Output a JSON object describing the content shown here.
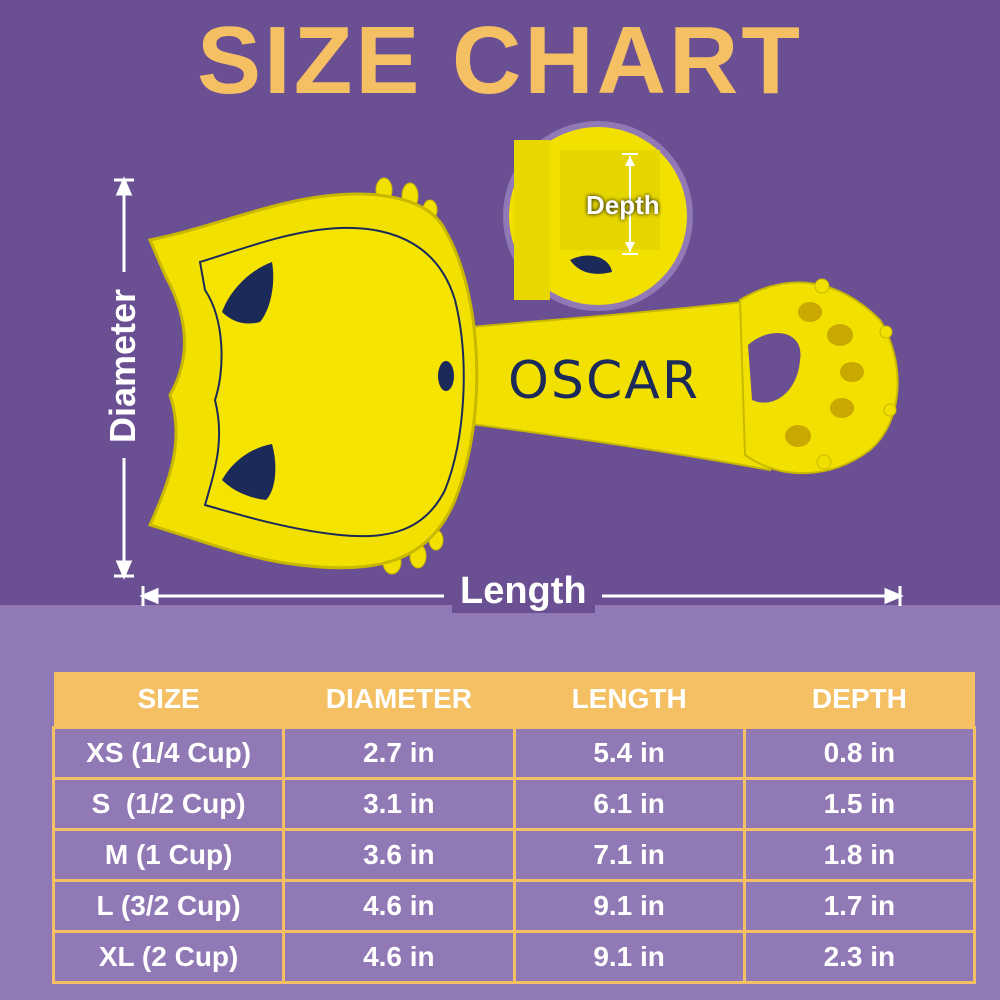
{
  "title": "SIZE CHART",
  "engraving": "OSCAR",
  "dimension_labels": {
    "diameter": "Diameter",
    "length": "Length",
    "depth": "Depth"
  },
  "colors": {
    "header_bg": "#6b4f93",
    "table_bg": "#9079b4",
    "accent": "#f5c063",
    "scoop_yellow": "#f2e100",
    "ears_navy": "#1c2a5a"
  },
  "table": {
    "headers": [
      "SIZE",
      "DIAMETER",
      "LENGTH",
      "DEPTH"
    ],
    "rows": [
      [
        "XS (1/4 Cup)",
        "2.7 in",
        "5.4 in",
        "0.8 in"
      ],
      [
        "S  (1/2 Cup)",
        "3.1 in",
        "6.1 in",
        "1.5 in"
      ],
      [
        "M (1 Cup)",
        "3.6 in",
        "7.1 in",
        "1.8 in"
      ],
      [
        "L (3/2 Cup)",
        "4.6 in",
        "9.1 in",
        "1.7 in"
      ],
      [
        "XL (2 Cup)",
        "4.6 in",
        "9.1 in",
        "2.3 in"
      ]
    ]
  }
}
